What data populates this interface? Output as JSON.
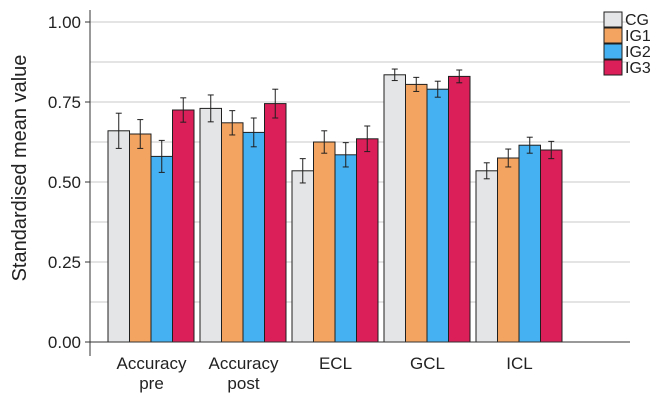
{
  "chart_data": {
    "type": "bar",
    "title": "",
    "xlabel": "",
    "ylabel": "Standardised mean value",
    "ylim": [
      0,
      1.05
    ],
    "yticks": [
      "0.00",
      "0.25",
      "0.50",
      "0.75",
      "1.00"
    ],
    "ytick_values": [
      0,
      0.25,
      0.5,
      0.75,
      1.0
    ],
    "grid": true,
    "legend_position": "top-right",
    "categories": [
      [
        "Accuracy",
        "pre"
      ],
      [
        "Accuracy",
        "post"
      ],
      [
        "ECL"
      ],
      [
        "GCL"
      ],
      [
        "ICL"
      ]
    ],
    "series": [
      {
        "name": "CG",
        "color": "#e4e5e7",
        "values": [
          0.66,
          0.73,
          0.535,
          0.835,
          0.535
        ],
        "errors": [
          0.055,
          0.042,
          0.038,
          0.018,
          0.025
        ]
      },
      {
        "name": "IG1",
        "color": "#f4a461",
        "values": [
          0.65,
          0.685,
          0.625,
          0.805,
          0.575
        ],
        "errors": [
          0.045,
          0.038,
          0.035,
          0.022,
          0.028
        ]
      },
      {
        "name": "IG2",
        "color": "#45b0f2",
        "values": [
          0.58,
          0.655,
          0.585,
          0.79,
          0.615
        ],
        "errors": [
          0.05,
          0.045,
          0.038,
          0.025,
          0.025
        ]
      },
      {
        "name": "IG3",
        "color": "#db1f58",
        "values": [
          0.725,
          0.745,
          0.635,
          0.83,
          0.6
        ],
        "errors": [
          0.038,
          0.045,
          0.04,
          0.02,
          0.027
        ]
      }
    ]
  }
}
